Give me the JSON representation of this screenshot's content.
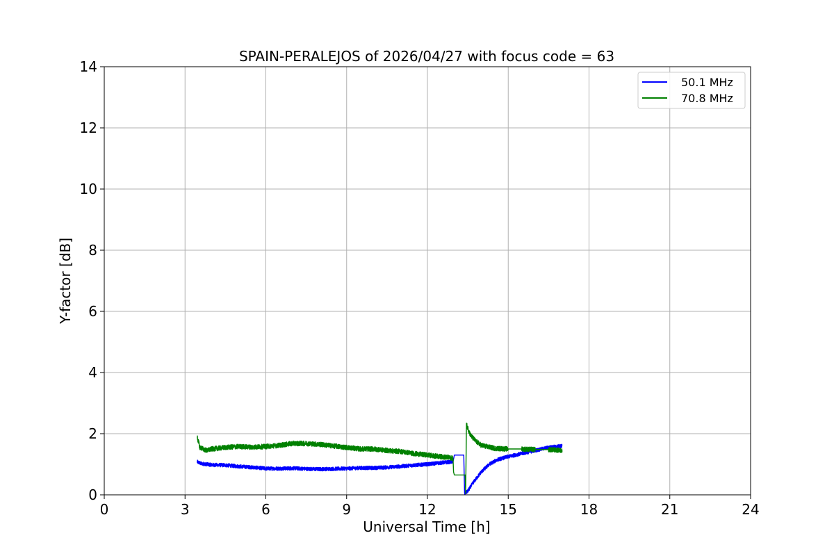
{
  "chart_data": {
    "type": "line",
    "title": "SPAIN-PERALEJOS of 2026/04/27 with focus code = 63",
    "xlabel": "Universal Time [h]",
    "ylabel": "Y-factor [dB]",
    "xlim": [
      0,
      24
    ],
    "ylim": [
      0,
      14
    ],
    "x_ticks": [
      0,
      3,
      6,
      9,
      12,
      15,
      18,
      21,
      24
    ],
    "y_ticks": [
      0,
      2,
      4,
      6,
      8,
      10,
      12,
      14
    ],
    "grid": true,
    "legend_position": "top-right",
    "series": [
      {
        "name": "50.1 MHz",
        "color": "#0000ff",
        "noise": 0.06,
        "points": [
          [
            3.45,
            1.08
          ],
          [
            3.6,
            1.02
          ],
          [
            4.0,
            0.98
          ],
          [
            4.5,
            0.97
          ],
          [
            5.0,
            0.93
          ],
          [
            5.5,
            0.9
          ],
          [
            6.0,
            0.86
          ],
          [
            6.5,
            0.86
          ],
          [
            7.0,
            0.87
          ],
          [
            7.5,
            0.85
          ],
          [
            8.0,
            0.84
          ],
          [
            8.5,
            0.85
          ],
          [
            9.0,
            0.86
          ],
          [
            9.5,
            0.88
          ],
          [
            10.0,
            0.88
          ],
          [
            10.5,
            0.9
          ],
          [
            11.0,
            0.93
          ],
          [
            11.5,
            0.97
          ],
          [
            12.0,
            1.0
          ],
          [
            12.5,
            1.05
          ],
          [
            12.95,
            1.08
          ],
          [
            13.0,
            1.3
          ],
          [
            13.35,
            1.3
          ],
          [
            13.38,
            0.05
          ],
          [
            13.5,
            0.12
          ],
          [
            13.7,
            0.4
          ],
          [
            14.0,
            0.75
          ],
          [
            14.3,
            1.0
          ],
          [
            14.6,
            1.15
          ],
          [
            15.0,
            1.25
          ],
          [
            15.5,
            1.35
          ],
          [
            16.0,
            1.45
          ],
          [
            16.5,
            1.55
          ],
          [
            17.0,
            1.6
          ]
        ]
      },
      {
        "name": "70.8 MHz",
        "color": "#008000",
        "noise": 0.08,
        "points": [
          [
            3.45,
            1.9
          ],
          [
            3.55,
            1.55
          ],
          [
            3.8,
            1.45
          ],
          [
            4.0,
            1.5
          ],
          [
            4.5,
            1.55
          ],
          [
            5.0,
            1.58
          ],
          [
            5.5,
            1.56
          ],
          [
            6.0,
            1.58
          ],
          [
            6.5,
            1.62
          ],
          [
            7.0,
            1.68
          ],
          [
            7.5,
            1.68
          ],
          [
            8.0,
            1.65
          ],
          [
            8.5,
            1.6
          ],
          [
            9.0,
            1.55
          ],
          [
            9.5,
            1.5
          ],
          [
            10.0,
            1.5
          ],
          [
            10.5,
            1.45
          ],
          [
            11.0,
            1.42
          ],
          [
            11.5,
            1.35
          ],
          [
            12.0,
            1.3
          ],
          [
            12.5,
            1.25
          ],
          [
            12.95,
            1.2
          ],
          [
            12.97,
            0.75
          ],
          [
            13.0,
            0.65
          ],
          [
            13.4,
            0.65
          ],
          [
            13.42,
            0.05
          ],
          [
            13.45,
            2.3
          ],
          [
            13.6,
            1.95
          ],
          [
            13.8,
            1.75
          ],
          [
            14.0,
            1.62
          ],
          [
            14.5,
            1.52
          ],
          [
            15.0,
            1.5
          ],
          [
            15.5,
            1.5
          ],
          [
            16.0,
            1.48
          ],
          [
            16.5,
            1.48
          ],
          [
            17.0,
            1.45
          ]
        ]
      }
    ]
  }
}
